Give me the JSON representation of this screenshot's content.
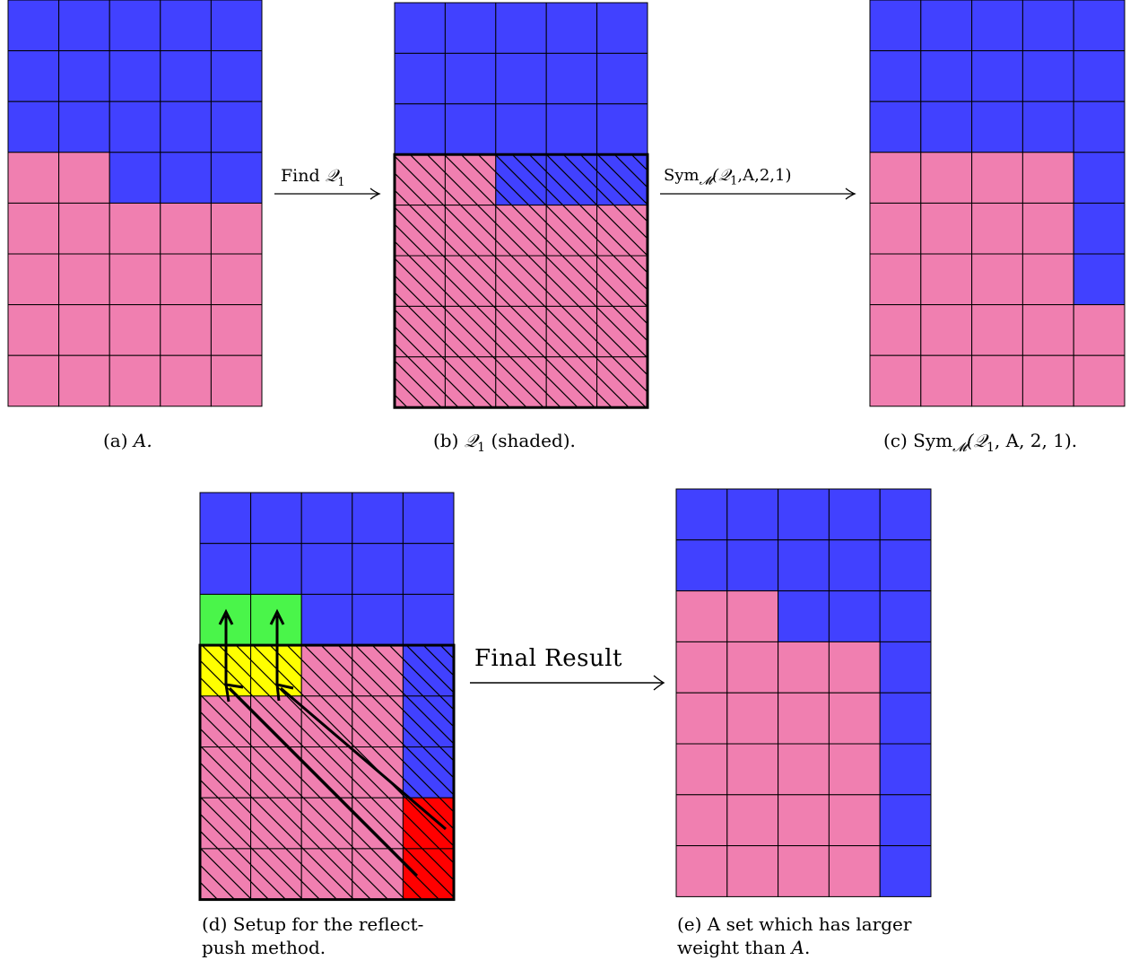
{
  "colors": {
    "blue": "#4141ff",
    "pink": "#f07fb0",
    "green": "#4af54a",
    "yellow": "#ffff00",
    "red": "#ff0000",
    "grid": "#000000"
  },
  "grid_size": {
    "cols": 5,
    "rows": 8
  },
  "panels": [
    {
      "id": "a",
      "caption": {
        "label": "(a)",
        "rest": "A."
      },
      "rows": [
        [
          "B",
          "B",
          "B",
          "B",
          "B"
        ],
        [
          "B",
          "B",
          "B",
          "B",
          "B"
        ],
        [
          "B",
          "B",
          "B",
          "B",
          "B"
        ],
        [
          "P",
          "P",
          "B",
          "B",
          "B"
        ],
        [
          "P",
          "P",
          "P",
          "P",
          "P"
        ],
        [
          "P",
          "P",
          "P",
          "P",
          "P"
        ],
        [
          "P",
          "P",
          "P",
          "P",
          "P"
        ],
        [
          "P",
          "P",
          "P",
          "P",
          "P"
        ]
      ],
      "hatched_rows": []
    },
    {
      "id": "b",
      "caption": {
        "label": "(b)",
        "rest": "𝒬₁ (shaded)."
      },
      "rows": [
        [
          "B",
          "B",
          "B",
          "B",
          "B"
        ],
        [
          "B",
          "B",
          "B",
          "B",
          "B"
        ],
        [
          "B",
          "B",
          "B",
          "B",
          "B"
        ],
        [
          "P",
          "P",
          "B",
          "B",
          "B"
        ],
        [
          "P",
          "P",
          "P",
          "P",
          "P"
        ],
        [
          "P",
          "P",
          "P",
          "P",
          "P"
        ],
        [
          "P",
          "P",
          "P",
          "P",
          "P"
        ],
        [
          "P",
          "P",
          "P",
          "P",
          "P"
        ]
      ],
      "hatched_rows": [
        3,
        4,
        5,
        6,
        7
      ]
    },
    {
      "id": "c",
      "caption": {
        "label": "(c)",
        "rest": "Sym𝓜(𝒬₁, A, 2, 1)."
      },
      "rows": [
        [
          "B",
          "B",
          "B",
          "B",
          "B"
        ],
        [
          "B",
          "B",
          "B",
          "B",
          "B"
        ],
        [
          "B",
          "B",
          "B",
          "B",
          "B"
        ],
        [
          "P",
          "P",
          "P",
          "P",
          "B"
        ],
        [
          "P",
          "P",
          "P",
          "P",
          "B"
        ],
        [
          "P",
          "P",
          "P",
          "P",
          "B"
        ],
        [
          "P",
          "P",
          "P",
          "P",
          "P"
        ],
        [
          "P",
          "P",
          "P",
          "P",
          "P"
        ]
      ],
      "hatched_rows": []
    },
    {
      "id": "d",
      "caption": {
        "label": "(d)",
        "line1": "Setup for the reflect-",
        "line2": "push method."
      },
      "rows": [
        [
          "B",
          "B",
          "B",
          "B",
          "B"
        ],
        [
          "B",
          "B",
          "B",
          "B",
          "B"
        ],
        [
          "G",
          "G",
          "B",
          "B",
          "B"
        ],
        [
          "Y",
          "Y",
          "P",
          "P",
          "B"
        ],
        [
          "P",
          "P",
          "P",
          "P",
          "B"
        ],
        [
          "P",
          "P",
          "P",
          "P",
          "B"
        ],
        [
          "P",
          "P",
          "P",
          "P",
          "R"
        ],
        [
          "P",
          "P",
          "P",
          "P",
          "R"
        ]
      ],
      "hatched_rows": [
        3,
        4,
        5,
        6,
        7
      ]
    },
    {
      "id": "e",
      "caption": {
        "label": "(e)",
        "line1": "A set which has larger",
        "line2": "weight than A."
      },
      "rows": [
        [
          "B",
          "B",
          "B",
          "B",
          "B"
        ],
        [
          "B",
          "B",
          "B",
          "B",
          "B"
        ],
        [
          "P",
          "P",
          "B",
          "B",
          "B"
        ],
        [
          "P",
          "P",
          "P",
          "P",
          "B"
        ],
        [
          "P",
          "P",
          "P",
          "P",
          "B"
        ],
        [
          "P",
          "P",
          "P",
          "P",
          "B"
        ],
        [
          "P",
          "P",
          "P",
          "P",
          "B"
        ],
        [
          "P",
          "P",
          "P",
          "P",
          "B"
        ]
      ],
      "hatched_rows": []
    }
  ],
  "arrows": {
    "find": {
      "text": "Find",
      "sym": "𝒬",
      "sub": "1"
    },
    "sym": {
      "text": "Sym",
      "sub_m": "𝓜",
      "args": "(𝒬",
      "sub1": "1",
      "rest": ",A,2,1)"
    },
    "final": {
      "text": "Final Result"
    }
  },
  "captions": {
    "a_label": "(a)",
    "a_math": "A.",
    "b_label": "(b)",
    "b_sym": "𝒬",
    "b_sub": "1",
    "b_rest": "(shaded).",
    "c_label": "(c)",
    "c_sym": "Sym",
    "c_subm": "𝓜",
    "c_args": "(𝒬",
    "c_sub1": "1",
    "c_rest": ", A, 2, 1).",
    "d_line1": "(d) Setup for the reflect-",
    "d_line2": "push method.",
    "e_line1": "(e) A set which has larger",
    "e_line2_pre": "weight than ",
    "e_line2_math": "A",
    "e_line2_post": "."
  }
}
